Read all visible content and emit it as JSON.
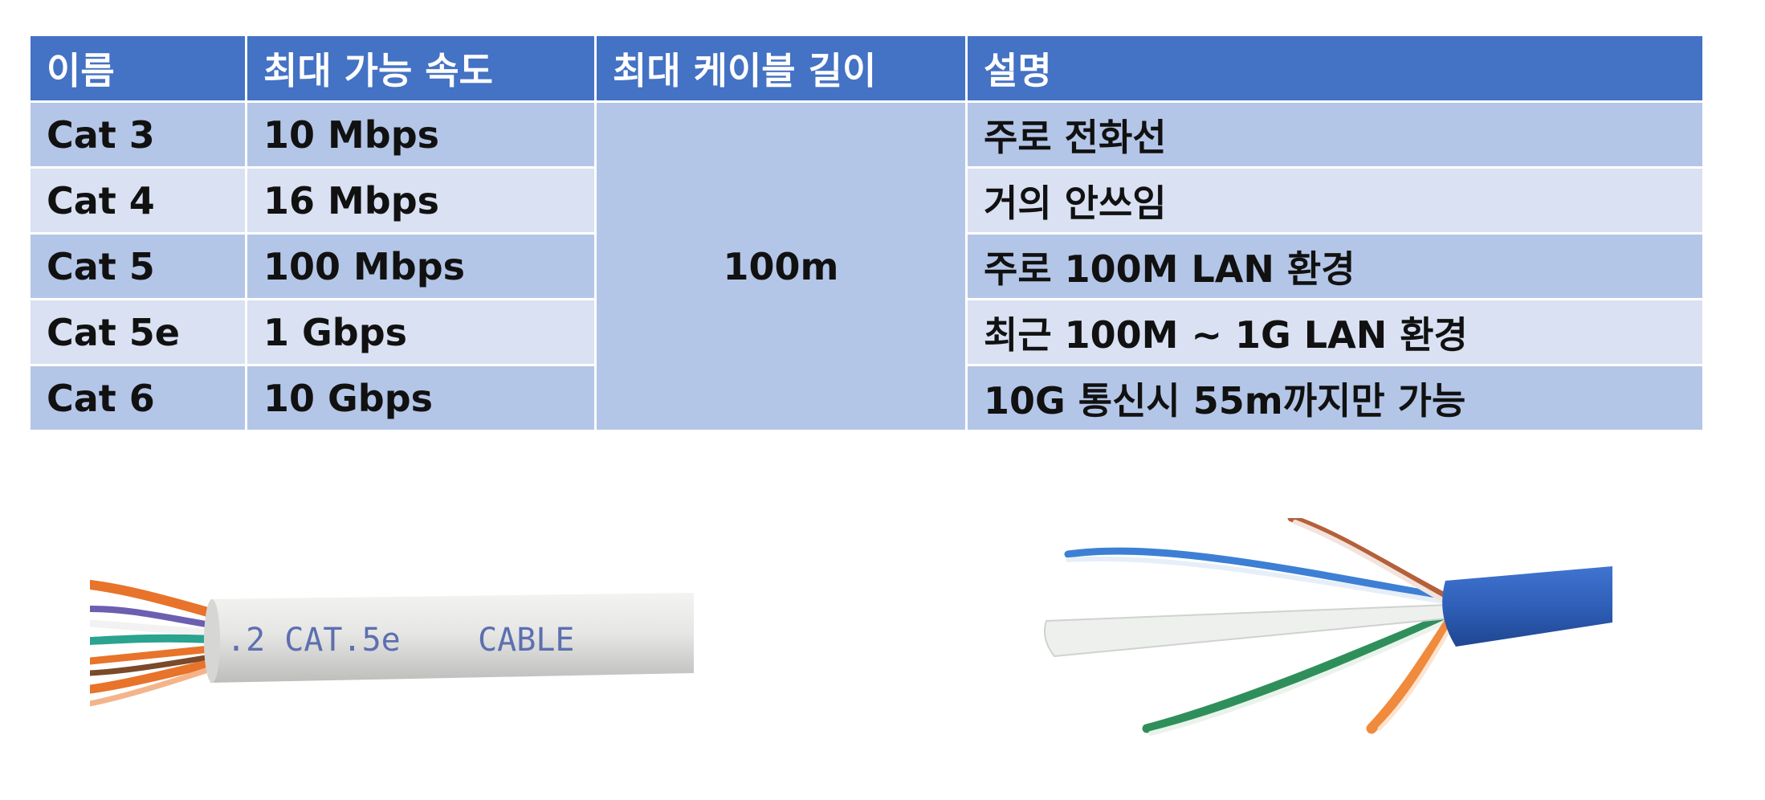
{
  "table": {
    "headers": [
      "이름",
      "최대 가능 속도",
      "최대 케이블 길이",
      "설명"
    ],
    "max_length": "100m",
    "rows": [
      {
        "name": "Cat 3",
        "speed": "10 Mbps",
        "desc": "주로 전화선"
      },
      {
        "name": "Cat 4",
        "speed": "16 Mbps",
        "desc": "거의 안쓰임"
      },
      {
        "name": "Cat 5",
        "speed": "100 Mbps",
        "desc": "주로 100M LAN 환경"
      },
      {
        "name": "Cat 5e",
        "speed": "1 Gbps",
        "desc": "최근 100M ~ 1G LAN 환경"
      },
      {
        "name": "Cat 6",
        "speed": "10 Gbps",
        "desc": "10G 통신시 55m까지만 가능"
      }
    ]
  },
  "photos": {
    "cat5e_print": ".2 CAT.5e    CABLE"
  },
  "colors": {
    "header_bg": "#4472c4",
    "row_dark": "#b4c6e7",
    "row_light": "#d9e1f2",
    "cable_blue": "#2f5fb8",
    "cable_gray": "#e4e4e2"
  }
}
